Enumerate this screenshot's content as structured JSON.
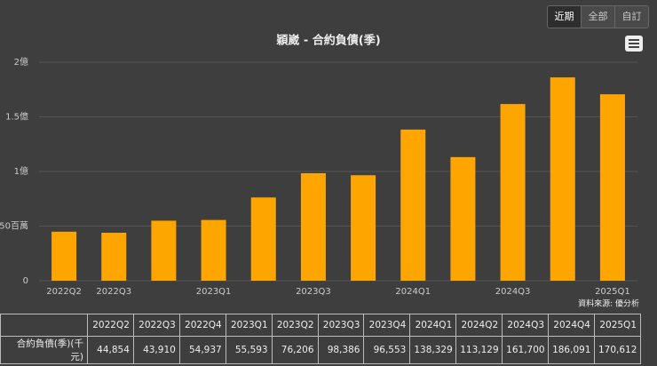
{
  "chart_data": {
    "type": "bar",
    "title": "穎崴 - 合約負債(季)",
    "categories": [
      "2022Q2",
      "2022Q3",
      "2022Q4",
      "2023Q1",
      "2023Q2",
      "2023Q3",
      "2023Q4",
      "2024Q1",
      "2024Q2",
      "2024Q3",
      "2024Q4",
      "2025Q1"
    ],
    "series": [
      {
        "name": "合約負債(季)(千元)",
        "color": "#ffa500",
        "values": [
          44854,
          43910,
          54937,
          55593,
          76206,
          98386,
          96553,
          138329,
          113129,
          161700,
          186091,
          170612
        ],
        "value_labels": [
          "44,854",
          "43,910",
          "54,937",
          "55,593",
          "76,206",
          "98,386",
          "96,553",
          "138,329",
          "113,129",
          "161,700",
          "186,091",
          "170,612"
        ]
      }
    ],
    "ylim": [
      0,
      200000
    ],
    "yticks": [
      0,
      {
        "value": 50000,
        "label": "50百萬"
      },
      {
        "value": 100000,
        "label": "1億"
      },
      {
        "value": 150000,
        "label": "1.5億"
      },
      {
        "value": 200000,
        "label": "2億"
      }
    ],
    "grid": true,
    "source": "資料來源: 優分析"
  },
  "buttons": [
    "近期",
    "全部",
    "自訂"
  ]
}
